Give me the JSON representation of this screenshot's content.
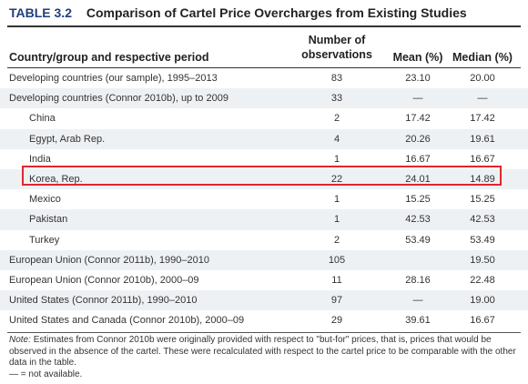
{
  "table": {
    "label": "TABLE 3.2",
    "title": "Comparison of Cartel Price Overcharges from Existing Studies",
    "headers": {
      "country": "Country/group and respective period",
      "nobs_line1": "Number of",
      "nobs_line2": "observations",
      "mean": "Mean (%)",
      "median": "Median (%)"
    },
    "rows": [
      {
        "country": "Developing countries (our sample), 1995–2013",
        "nobs": "83",
        "mean": "23.10",
        "median": "20.00"
      },
      {
        "country": "Developing countries (Connor 2010b), up to 2009",
        "nobs": "33",
        "mean": "—",
        "median": "—"
      },
      {
        "country": "China",
        "nobs": "2",
        "mean": "17.42",
        "median": "17.42"
      },
      {
        "country": "Egypt, Arab Rep.",
        "nobs": "4",
        "mean": "20.26",
        "median": "19.61"
      },
      {
        "country": "India",
        "nobs": "1",
        "mean": "16.67",
        "median": "16.67"
      },
      {
        "country": "Korea, Rep.",
        "nobs": "22",
        "mean": "24.01",
        "median": "14.89"
      },
      {
        "country": "Mexico",
        "nobs": "1",
        "mean": "15.25",
        "median": "15.25"
      },
      {
        "country": "Pakistan",
        "nobs": "1",
        "mean": "42.53",
        "median": "42.53"
      },
      {
        "country": "Turkey",
        "nobs": "2",
        "mean": "53.49",
        "median": "53.49"
      },
      {
        "country": "European Union (Connor 2011b), 1990–2010",
        "nobs": "105",
        "mean": "",
        "median": "19.50"
      },
      {
        "country": "European Union (Connor 2010b), 2000–09",
        "nobs": "11",
        "mean": "28.16",
        "median": "22.48"
      },
      {
        "country": "United States (Connor 2011b), 1990–2010",
        "nobs": "97",
        "mean": "—",
        "median": "19.00"
      },
      {
        "country": "United States and Canada (Connor 2010b), 2000–09",
        "nobs": "29",
        "mean": "39.61",
        "median": "16.67"
      }
    ],
    "note_label": "Note:",
    "note_text": "Estimates from Connor 2010b were originally provided with respect to \"but-for\" prices, that is, prices that would be observed in the absence of the cartel. These were recalculated with respect to the cartel price to be comparable with the other data in the table.",
    "legend_text": "— = not available.",
    "colors": {
      "title_label": "#1f3f7a",
      "highlight_border": "#e0262c",
      "row_shade": "#eef1f4"
    }
  }
}
